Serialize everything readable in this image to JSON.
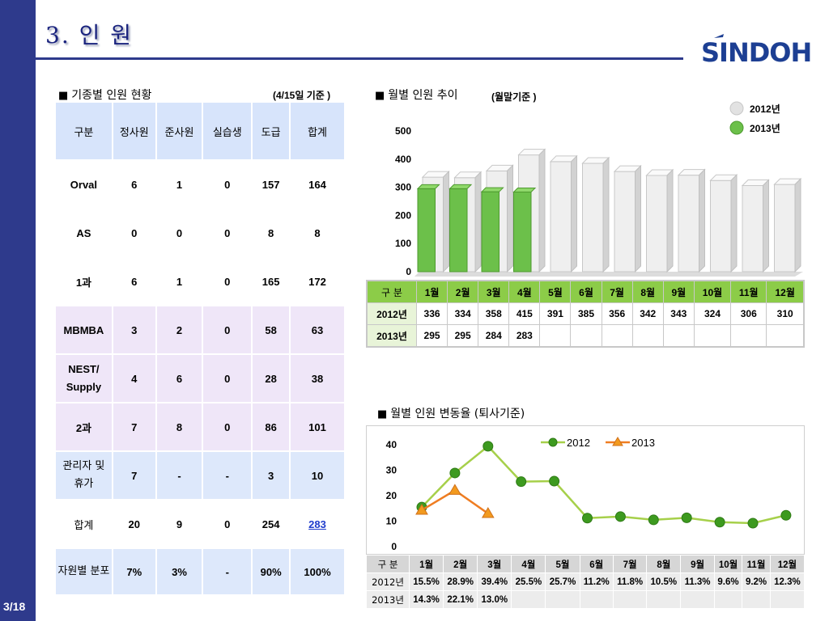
{
  "page": {
    "title": "3. 인 원",
    "page_number": "3/18",
    "logo_text": "SINDOH"
  },
  "section_left": {
    "heading": "기종별 인원 현황",
    "note": "(4/15일 기준 )"
  },
  "headcount_table": {
    "headers": [
      "구분",
      "정사원",
      "준사원",
      "실습생",
      "도급",
      "합계"
    ],
    "rows": [
      [
        "Orval",
        "6",
        "1",
        "0",
        "157",
        "164"
      ],
      [
        "AS",
        "0",
        "0",
        "0",
        "8",
        "8"
      ],
      [
        "1과",
        "6",
        "1",
        "0",
        "165",
        "172"
      ],
      [
        "MBMBA",
        "3",
        "2",
        "0",
        "58",
        "63"
      ],
      [
        "NEST/ Supply",
        "4",
        "6",
        "0",
        "28",
        "38"
      ],
      [
        "2과",
        "7",
        "8",
        "0",
        "86",
        "101"
      ],
      [
        "관리자 및 휴가",
        "7",
        "-",
        "-",
        "3",
        "10"
      ],
      [
        "합계",
        "20",
        "9",
        "0",
        "254",
        "283"
      ],
      [
        "자원별 분포",
        "7%",
        "3%",
        "-",
        "90%",
        "100%"
      ]
    ]
  },
  "section_monthly": {
    "heading": "월별 인원 추이",
    "note": "(월말기준 )"
  },
  "monthly_table": {
    "header_label": "구 분",
    "months": [
      "1월",
      "2월",
      "3월",
      "4월",
      "5월",
      "6월",
      "7월",
      "8월",
      "9월",
      "10월",
      "11월",
      "12월"
    ],
    "rows": [
      {
        "label": "2012년",
        "values": [
          "336",
          "334",
          "358",
          "415",
          "391",
          "385",
          "356",
          "342",
          "343",
          "324",
          "306",
          "310"
        ]
      },
      {
        "label": "2013년",
        "values": [
          "295",
          "295",
          "284",
          "283",
          "",
          "",
          "",
          "",
          "",
          "",
          "",
          ""
        ]
      }
    ]
  },
  "section_rate": {
    "heading": "월별 인원 변동율 (퇴사기준)"
  },
  "rate_table": {
    "header_label": "구 분",
    "months": [
      "1월",
      "2월",
      "3월",
      "4월",
      "5월",
      "6월",
      "7월",
      "8월",
      "9월",
      "10월",
      "11월",
      "12월"
    ],
    "rows": [
      {
        "label": "2012년",
        "values": [
          "15.5%",
          "28.9%",
          "39.4%",
          "25.5%",
          "25.7%",
          "11.2%",
          "11.8%",
          "10.5%",
          "11.3%",
          "9.6%",
          "9.2%",
          "12.3%"
        ]
      },
      {
        "label": "2013년",
        "values": [
          "14.3%",
          "22.1%",
          "13.0%",
          "",
          "",
          "",
          "",
          "",
          "",
          "",
          "",
          ""
        ]
      }
    ]
  },
  "chart_data": [
    {
      "type": "bar",
      "categories": [
        "1월",
        "2월",
        "3월",
        "4월",
        "5월",
        "6월",
        "7월",
        "8월",
        "9월",
        "10월",
        "11월",
        "12월"
      ],
      "series": [
        {
          "name": "2012년",
          "color": "#e6e6e6",
          "values": [
            336,
            334,
            358,
            415,
            391,
            385,
            356,
            342,
            343,
            324,
            306,
            310
          ]
        },
        {
          "name": "2013년",
          "color": "#6cc04a",
          "values": [
            295,
            295,
            284,
            283,
            null,
            null,
            null,
            null,
            null,
            null,
            null,
            null
          ]
        }
      ],
      "yticks": [
        "0",
        "100",
        "200",
        "300",
        "400",
        "500"
      ],
      "ylim": [
        0,
        500
      ],
      "legend": "top-right",
      "style": "3d"
    },
    {
      "type": "line",
      "categories": [
        "1월",
        "2월",
        "3월",
        "4월",
        "5월",
        "6월",
        "7월",
        "8월",
        "9월",
        "10월",
        "11월",
        "12월"
      ],
      "series": [
        {
          "name": "2012",
          "color": "#3d9a1f",
          "line_color": "#a6d04a",
          "marker": "circle",
          "values": [
            15.5,
            28.9,
            39.4,
            25.5,
            25.7,
            11.2,
            11.8,
            10.5,
            11.3,
            9.6,
            9.2,
            12.3
          ]
        },
        {
          "name": "2013",
          "color": "#f29a1e",
          "line_color": "#ef7d22",
          "marker": "triangle",
          "values": [
            14.3,
            22.1,
            13.0,
            null,
            null,
            null,
            null,
            null,
            null,
            null,
            null,
            null
          ]
        }
      ],
      "yticks": [
        "0",
        "10",
        "20",
        "30",
        "40"
      ],
      "ylim": [
        0,
        40
      ],
      "legend": "top-center"
    }
  ]
}
